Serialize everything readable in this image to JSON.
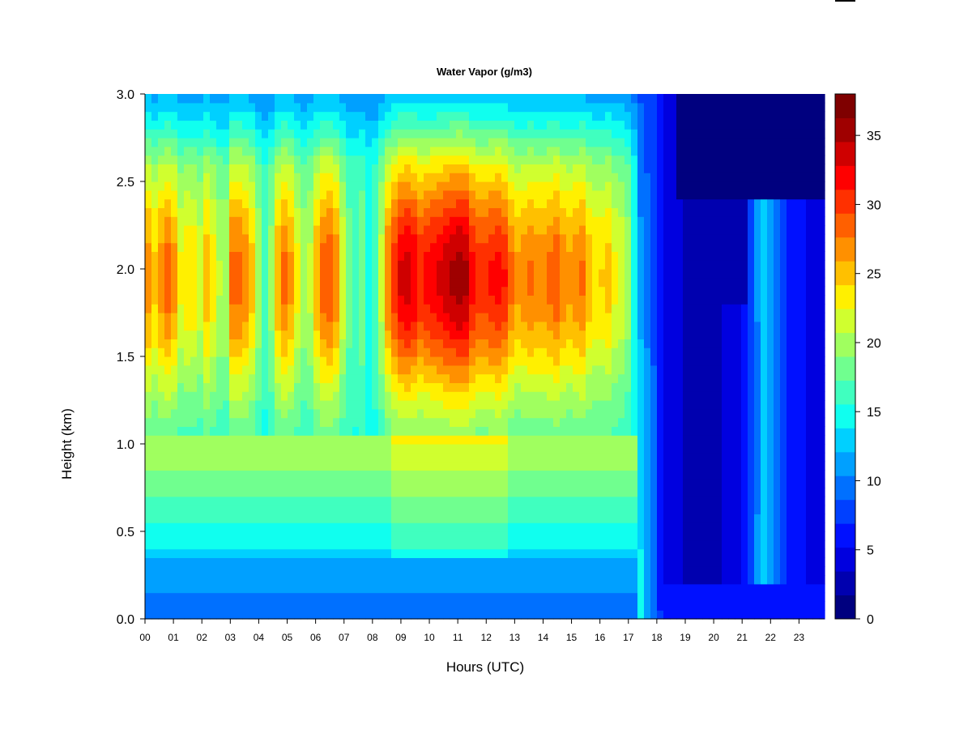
{
  "chart_data": {
    "type": "heatmap",
    "title": "Water Vapor (g/m3)",
    "xlabel": "Hours (UTC)",
    "ylabel": "Height (km)",
    "x_range": [
      0,
      23.9
    ],
    "y_range": [
      0.0,
      3.0
    ],
    "x_ticks": [
      "00",
      "01",
      "02",
      "03",
      "04",
      "05",
      "06",
      "07",
      "08",
      "09",
      "10",
      "11",
      "12",
      "13",
      "14",
      "15",
      "16",
      "17",
      "18",
      "19",
      "20",
      "21",
      "22",
      "23"
    ],
    "y_ticks": [
      "0.0",
      "0.5",
      "1.0",
      "1.5",
      "2.0",
      "2.5",
      "3.0"
    ],
    "colorbar": {
      "min": 0,
      "max": 38,
      "labels": [
        "0",
        "5",
        "10",
        "15",
        "20",
        "25",
        "30",
        "35"
      ],
      "colors": [
        "#00007F",
        "#0000AF",
        "#0000DF",
        "#0010FF",
        "#0040FF",
        "#0070FF",
        "#00A0FF",
        "#00D0FF",
        "#10FFEF",
        "#40FFBF",
        "#70FF8F",
        "#A0FF5F",
        "#D0FF2F",
        "#FFF000",
        "#FFC000",
        "#FF9000",
        "#FF6000",
        "#FF3000",
        "#FF0000",
        "#CF0000",
        "#9F0000",
        "#7F0000"
      ]
    },
    "column_profile": {
      "hours": [
        0,
        0.4,
        0.7,
        1.0,
        1.3,
        1.6,
        1.9,
        2.2,
        2.5,
        2.8,
        3.1,
        3.4,
        3.7,
        4.0,
        4.3,
        4.6,
        4.9,
        5.2,
        5.5,
        5.8,
        6.1,
        6.4,
        6.7,
        7.0,
        7.3,
        7.6,
        7.9,
        8.2,
        8.5,
        8.8,
        9.1,
        9.4,
        9.7,
        10.0,
        10.3,
        10.6,
        10.9,
        11.2,
        11.5,
        11.8,
        12.1,
        12.4,
        12.7,
        13.0,
        13.3,
        13.6,
        13.9,
        14.2,
        14.5,
        14.8,
        15.1,
        15.4,
        15.7,
        16.0,
        16.3,
        16.6,
        16.9,
        17.2,
        17.5,
        17.8,
        18.2,
        18.6,
        19.0,
        19.4,
        19.8,
        20.2,
        20.6,
        21.0,
        21.4,
        21.8,
        22.2,
        22.6,
        23.0,
        23.4,
        23.9
      ],
      "peak_g_m3": [
        28,
        24,
        29,
        27,
        22,
        25,
        21,
        26,
        22,
        19,
        29,
        28,
        26,
        20,
        15,
        25,
        28,
        26,
        20,
        21,
        27,
        30,
        28,
        21,
        16,
        19,
        14,
        18,
        27,
        31,
        34,
        33,
        31,
        32,
        33,
        34,
        35,
        36,
        32,
        30,
        31,
        32,
        31,
        26,
        27,
        28,
        27,
        28,
        29,
        26,
        27,
        28,
        24,
        24,
        25,
        22,
        22,
        14,
        7,
        6,
        5,
        4,
        3,
        3,
        3,
        3,
        4,
        5,
        9,
        14,
        10,
        7,
        6,
        5,
        5
      ]
    },
    "notes_low_layer": "Low moist layer 0.5-1.0 km approx 14-24 g/m3 before 17 UTC; drier 3-9 g/m3 after 17 UTC"
  }
}
